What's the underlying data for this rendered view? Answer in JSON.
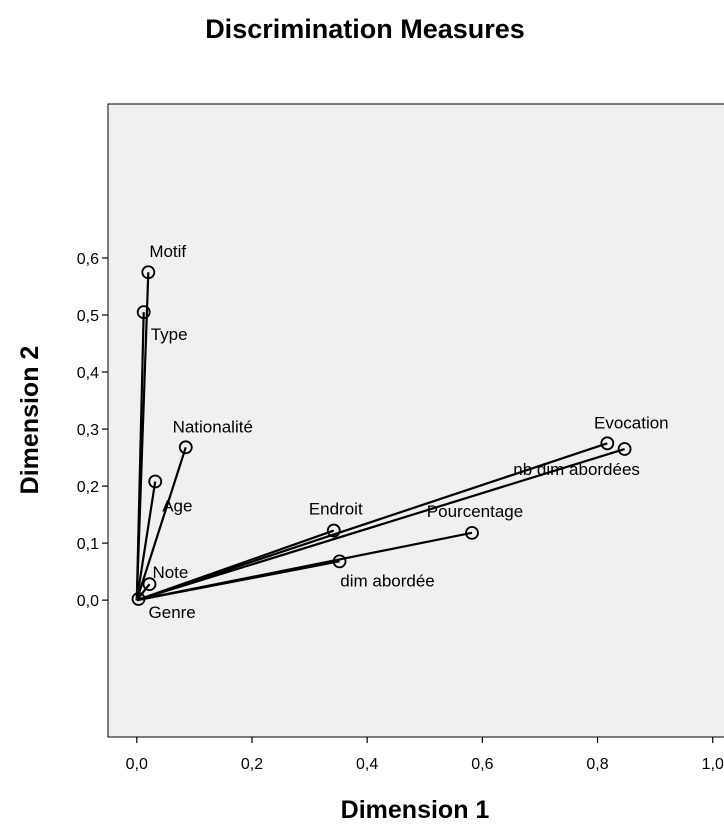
{
  "chart_data": {
    "type": "scatter",
    "title": "Discrimination Measures",
    "xlabel": "Dimension 1",
    "ylabel": "Dimension 2",
    "xlim": [
      -0.05,
      1.03
    ],
    "ylim": [
      -0.24,
      0.87
    ],
    "x_ticks": [
      "0,0",
      "0,2",
      "0,4",
      "0,6",
      "0,8",
      "1,0"
    ],
    "y_ticks": [
      "0,0",
      "0,1",
      "0,2",
      "0,3",
      "0,4",
      "0,5",
      "0,6"
    ],
    "x_tick_values": [
      0,
      0.2,
      0.4,
      0.6,
      0.8,
      1.0
    ],
    "y_tick_values": [
      0,
      0.1,
      0.2,
      0.3,
      0.4,
      0.5,
      0.6
    ],
    "grid": false,
    "background": "#f0f0f0",
    "vectors_from_origin": true,
    "points": [
      {
        "label": "Motif",
        "x": 0.02,
        "y": 0.575,
        "label_pos": "above-right"
      },
      {
        "label": "Type",
        "x": 0.012,
        "y": 0.505,
        "label_pos": "below-right"
      },
      {
        "label": "Nationalité",
        "x": 0.085,
        "y": 0.268,
        "label_pos": "above"
      },
      {
        "label": "Age",
        "x": 0.032,
        "y": 0.208,
        "label_pos": "below-right"
      },
      {
        "label": "Note",
        "x": 0.022,
        "y": 0.028,
        "label_pos": "above-right"
      },
      {
        "label": "Genre",
        "x": 0.003,
        "y": 0.002,
        "label_pos": "below-right"
      },
      {
        "label": "Endroit",
        "x": 0.342,
        "y": 0.122,
        "label_pos": "above"
      },
      {
        "label": "dim abordée",
        "x": 0.352,
        "y": 0.068,
        "label_pos": "below"
      },
      {
        "label": "Pourcentage",
        "x": 0.582,
        "y": 0.118,
        "label_pos": "above-left"
      },
      {
        "label": "Evocation",
        "x": 0.817,
        "y": 0.275,
        "label_pos": "above"
      },
      {
        "label": "nb dim abordées",
        "x": 0.847,
        "y": 0.265,
        "label_pos": "below-left"
      }
    ]
  }
}
